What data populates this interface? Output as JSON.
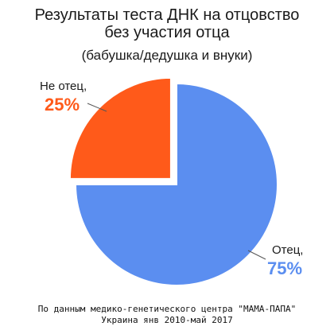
{
  "chart_data": {
    "type": "pie",
    "title": [
      "Результаты теста ДНК на отцовство",
      "без участия отца"
    ],
    "subtitle": "(бабушка/дедушка и внуки)",
    "slices": [
      {
        "name": "Отец,",
        "value": 75,
        "label": "75%",
        "color": "#5B8EF0",
        "exploded": false
      },
      {
        "name": "Не отец,",
        "value": 25,
        "label": "25%",
        "color": "#FF5A1A",
        "exploded": true
      }
    ],
    "start_angle_deg": 0,
    "direction": "clockwise",
    "legend": "none",
    "source": [
      "По данным медико-генетического центра \"МАМА-ПАПА\"",
      "Украина янв 2010-май 2017"
    ]
  },
  "colors": {
    "label_text": "#1a1a1a"
  }
}
